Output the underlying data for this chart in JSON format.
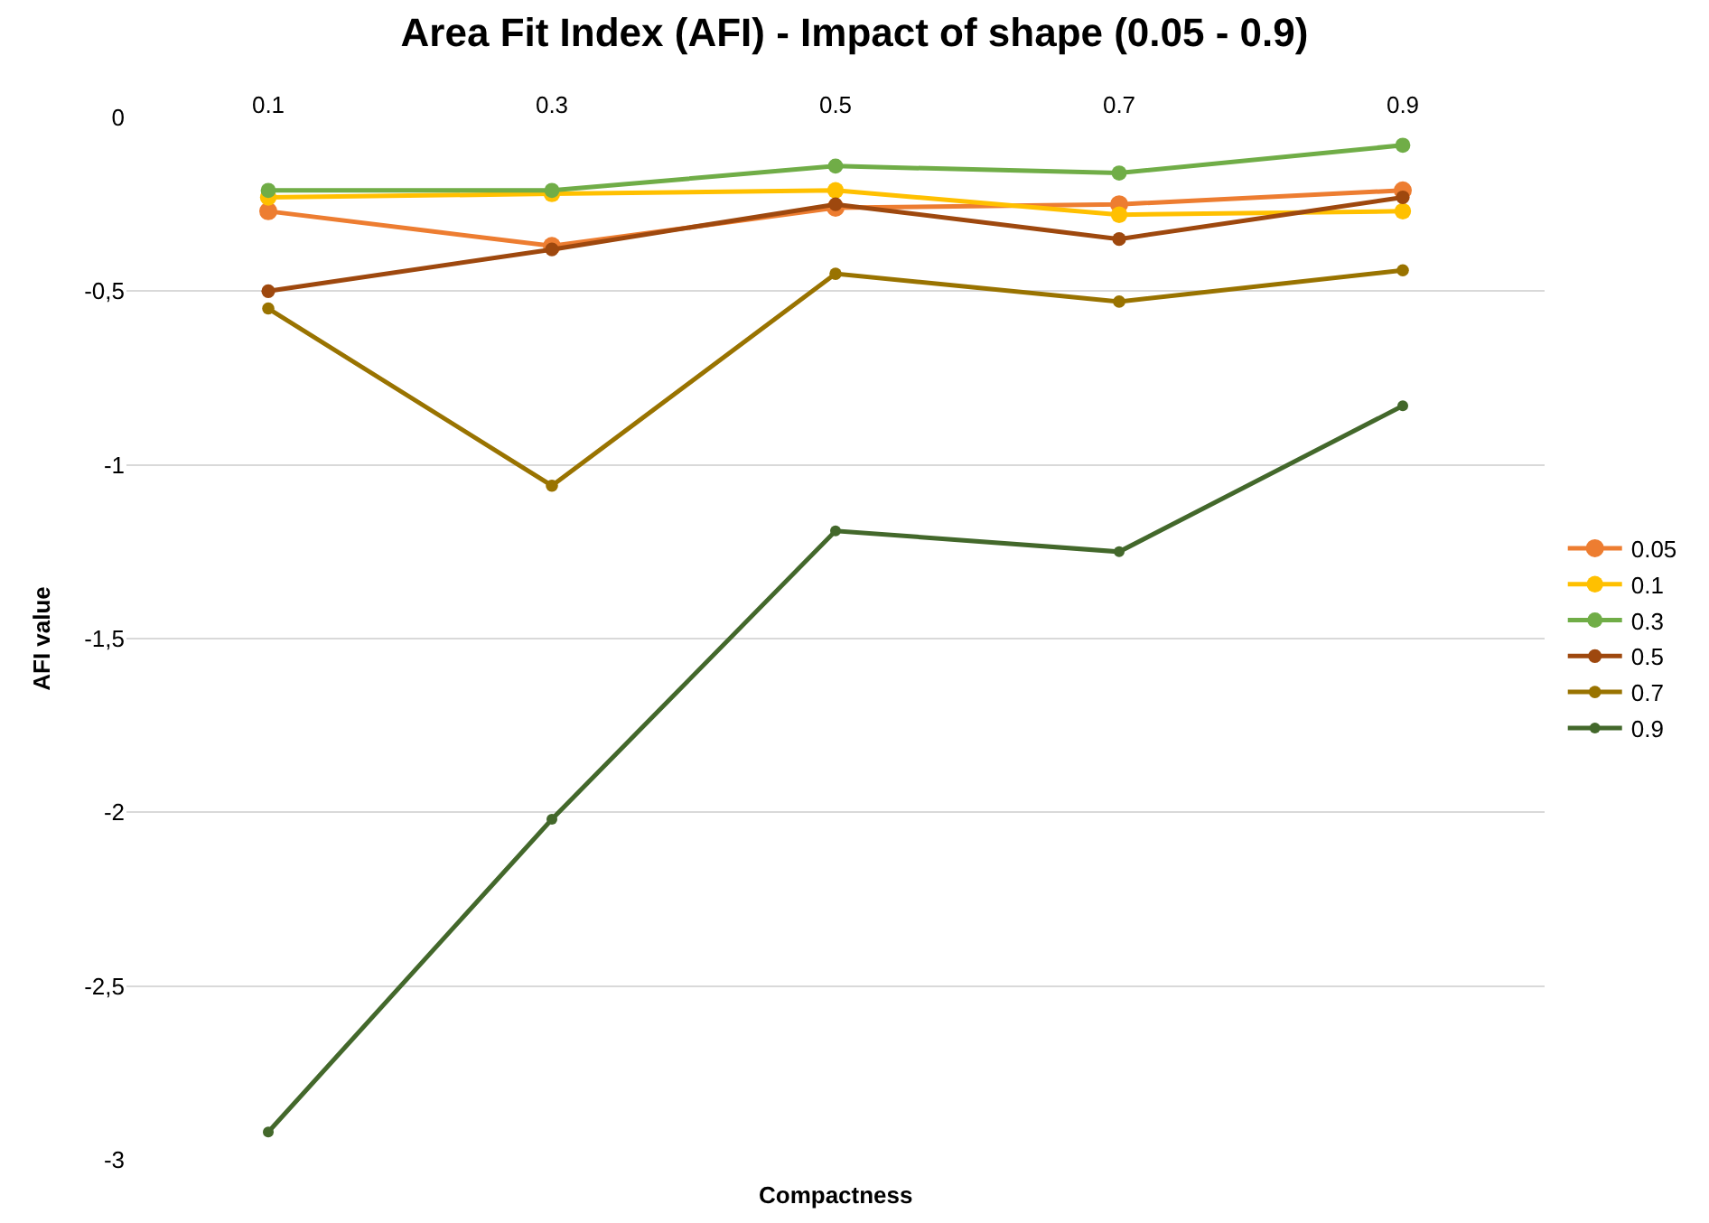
{
  "chart_data": {
    "type": "line",
    "title": "Area Fit Index (AFI) - Impact of shape (0.05 - 0.9)",
    "xlabel": "Compactness",
    "ylabel": "AFI value",
    "categories": [
      "0.1",
      "0.3",
      "0.5",
      "0.7",
      "0.9"
    ],
    "series": [
      {
        "name": "0.05",
        "color": "#ed7d31",
        "values": [
          -0.27,
          -0.37,
          -0.26,
          -0.25,
          -0.21
        ]
      },
      {
        "name": "0.1",
        "color": "#ffc000",
        "values": [
          -0.23,
          -0.22,
          -0.21,
          -0.28,
          -0.27
        ]
      },
      {
        "name": "0.3",
        "color": "#70ad47",
        "values": [
          -0.21,
          -0.21,
          -0.14,
          -0.16,
          -0.08
        ]
      },
      {
        "name": "0.5",
        "color": "#9e480e",
        "values": [
          -0.5,
          -0.38,
          -0.25,
          -0.35,
          -0.23
        ]
      },
      {
        "name": "0.7",
        "color": "#997300",
        "values": [
          -0.55,
          -1.06,
          -0.45,
          -0.53,
          -0.44
        ]
      },
      {
        "name": "0.9",
        "color": "#43682b",
        "values": [
          -2.92,
          -2.02,
          -1.19,
          -1.25,
          -0.83
        ]
      }
    ],
    "ylim": [
      -3,
      0
    ],
    "yticks": [
      0,
      {
        "value": -0.5,
        "label": "-0,5"
      },
      -1,
      {
        "value": -1.5,
        "label": "-1,5"
      },
      -2,
      {
        "value": -2.5,
        "label": "-2,5"
      },
      -3
    ],
    "grid": "y",
    "legend": "right",
    "marker": "circle",
    "line_style": "solid"
  }
}
